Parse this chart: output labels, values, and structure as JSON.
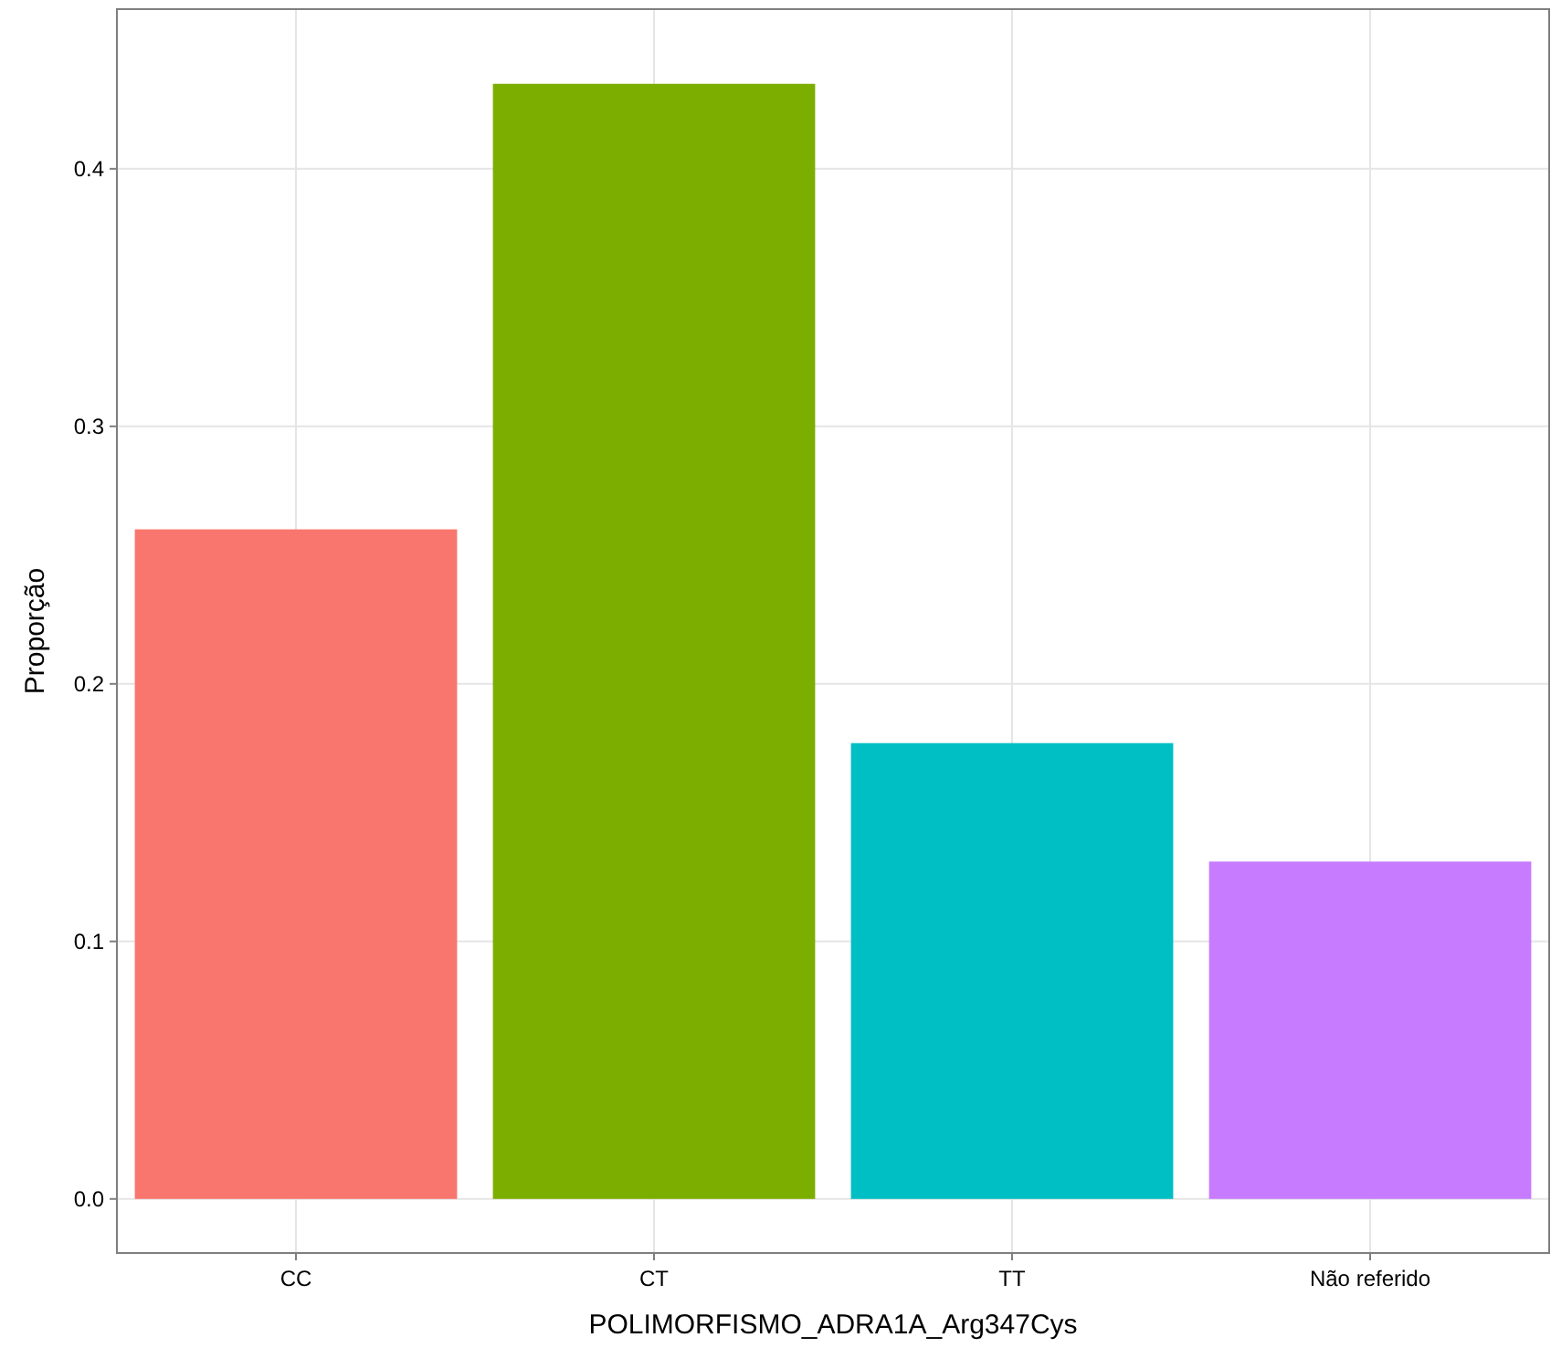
{
  "chart_data": {
    "type": "bar",
    "xlabel": "POLIMORFISMO_ADRA1A_Arg347Cys",
    "ylabel": "Proporção",
    "categories": [
      "CC",
      "CT",
      "TT",
      "Não referido"
    ],
    "values": [
      0.26,
      0.433,
      0.177,
      0.131
    ],
    "colors": [
      "#f8766d",
      "#7cae00",
      "#00bfc4",
      "#c77cff"
    ],
    "ylim": [
      -0.021,
      0.462
    ],
    "yticks": [
      {
        "value": 0,
        "label": "0.0"
      },
      0.1,
      0.2,
      0.3,
      0.4
    ],
    "grid": true
  }
}
